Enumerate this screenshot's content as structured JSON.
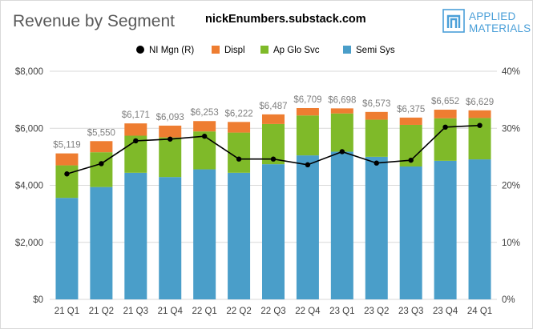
{
  "header": {
    "title": "Revenue by Segment",
    "source": "nickEnumbers.substack.com",
    "logo_line1": "APPLIED",
    "logo_line2": "MATERIALS",
    "logo_icon": "applied-materials-logo-icon",
    "logo_color": "#4a9fd8"
  },
  "chart_data": {
    "type": "bar",
    "stacked": true,
    "categories": [
      "21 Q1",
      "21 Q2",
      "21 Q3",
      "21 Q4",
      "22 Q1",
      "22 Q2",
      "22 Q3",
      "22 Q4",
      "23 Q1",
      "23 Q2",
      "23 Q3",
      "23 Q4",
      "24 Q1"
    ],
    "series": [
      {
        "name": "Semi Sys",
        "color": "#4a9ec9",
        "values": [
          3560,
          3940,
          4440,
          4290,
          4560,
          4440,
          4740,
          5050,
          5180,
          5000,
          4660,
          4860,
          4910
        ]
      },
      {
        "name": "Ap Glo Svc",
        "color": "#7fba29",
        "values": [
          1140,
          1220,
          1300,
          1390,
          1330,
          1410,
          1410,
          1400,
          1340,
          1300,
          1460,
          1490,
          1450
        ]
      },
      {
        "name": "Displ",
        "color": "#ee7d31",
        "values": [
          419,
          390,
          431,
          413,
          363,
          372,
          337,
          259,
          178,
          273,
          255,
          302,
          269
        ]
      }
    ],
    "totals": [
      5119,
      5550,
      6171,
      6093,
      6253,
      6222,
      6487,
      6709,
      6698,
      6573,
      6375,
      6652,
      6629
    ],
    "total_labels": [
      "$5,119",
      "$5,550",
      "$6,171",
      "$6,093",
      "$6,253",
      "$6,222",
      "$6,487",
      "$6,709",
      "$6,698",
      "$6,573",
      "$6,375",
      "$6,652",
      "$6,629"
    ],
    "line_series": {
      "name": "NI Mgn (R)",
      "color": "#000000",
      "axis": "right",
      "values": [
        22.0,
        23.8,
        27.8,
        28.1,
        28.6,
        24.6,
        24.6,
        23.6,
        25.9,
        23.9,
        24.4,
        30.2,
        30.5
      ]
    },
    "legend_order": [
      "NI Mgn (R)",
      "Displ",
      "Ap Glo Svc",
      "Semi Sys"
    ],
    "y_left": {
      "min": 0,
      "max": 8000,
      "ticks": [
        0,
        2000,
        4000,
        6000,
        8000
      ],
      "tick_labels": [
        "$0",
        "$2,000",
        "$4,000",
        "$6,000",
        "$8,000"
      ]
    },
    "y_right": {
      "min": 0,
      "max": 40,
      "ticks": [
        0,
        10,
        20,
        30,
        40
      ],
      "tick_labels": [
        "0%",
        "10%",
        "20%",
        "30%",
        "40%"
      ]
    },
    "grid": true,
    "legend_position": "top",
    "grid_color": "#d9d9d9",
    "label_color": "#7f7f7f",
    "axis_text_color": "#404040"
  }
}
